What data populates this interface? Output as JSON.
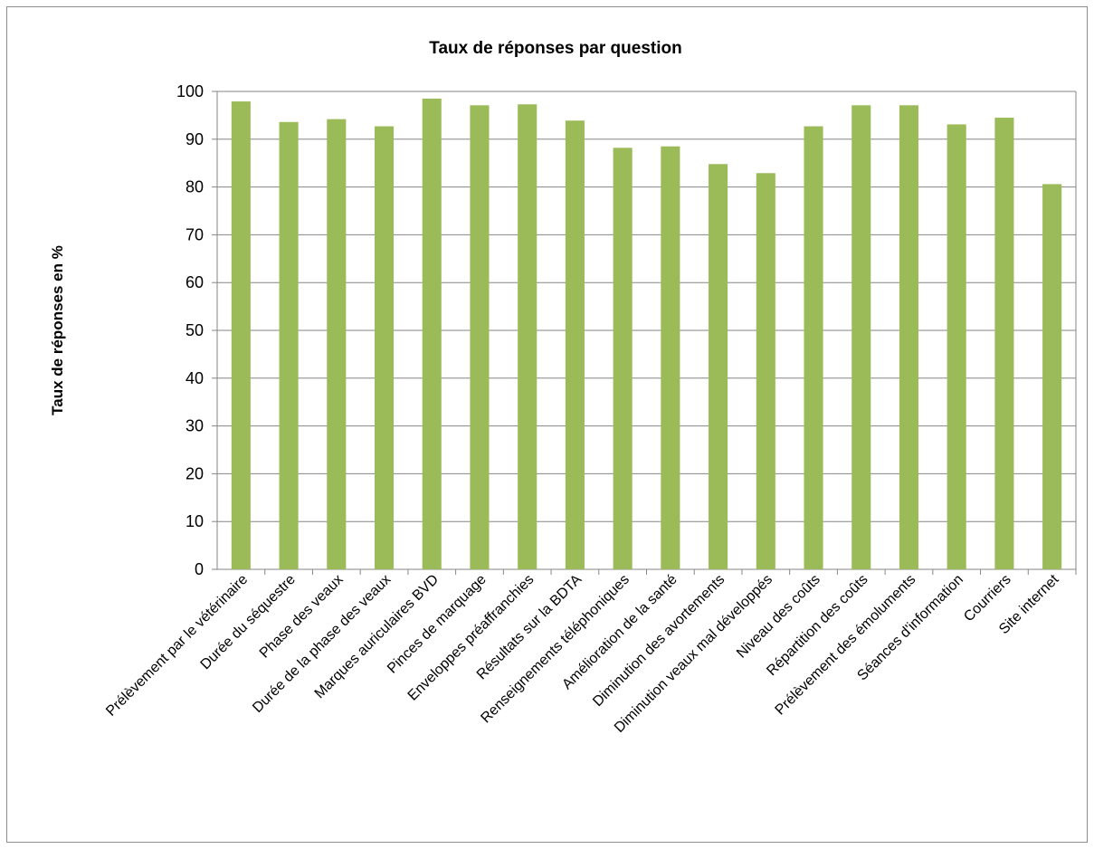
{
  "chart_data": {
    "type": "bar",
    "title": "Taux de réponses par question",
    "xlabel": "",
    "ylabel": "Taux de réponses en %",
    "ylim": [
      0,
      100
    ],
    "yticks": [
      0,
      10,
      20,
      30,
      40,
      50,
      60,
      70,
      80,
      90,
      100
    ],
    "grid": true,
    "bar_color": "#9bbb59",
    "categories": [
      "Prélèvement par le vétérinaire",
      "Durée du séquestre",
      "Phase des veaux",
      "Durée de la phase des veaux",
      "Marques auriculaires BVD",
      "Pinces de marquage",
      "Enveloppes préaffranchies",
      "Résultats sur la BDTA",
      "Renseignements téléphoniques",
      "Amélioration de la santé",
      "Diminution des avortements",
      "Diminution veaux mal développés",
      "Niveau des coûts",
      "Répartition des coûts",
      "Prélèvement des émoluments",
      "Séances d'information",
      "Courriers",
      "Site internet"
    ],
    "values": [
      97.9,
      93.6,
      94.2,
      92.7,
      98.5,
      97.1,
      97.3,
      93.9,
      88.2,
      88.5,
      84.8,
      82.9,
      92.7,
      97.1,
      97.1,
      93.1,
      94.5,
      80.6
    ]
  }
}
